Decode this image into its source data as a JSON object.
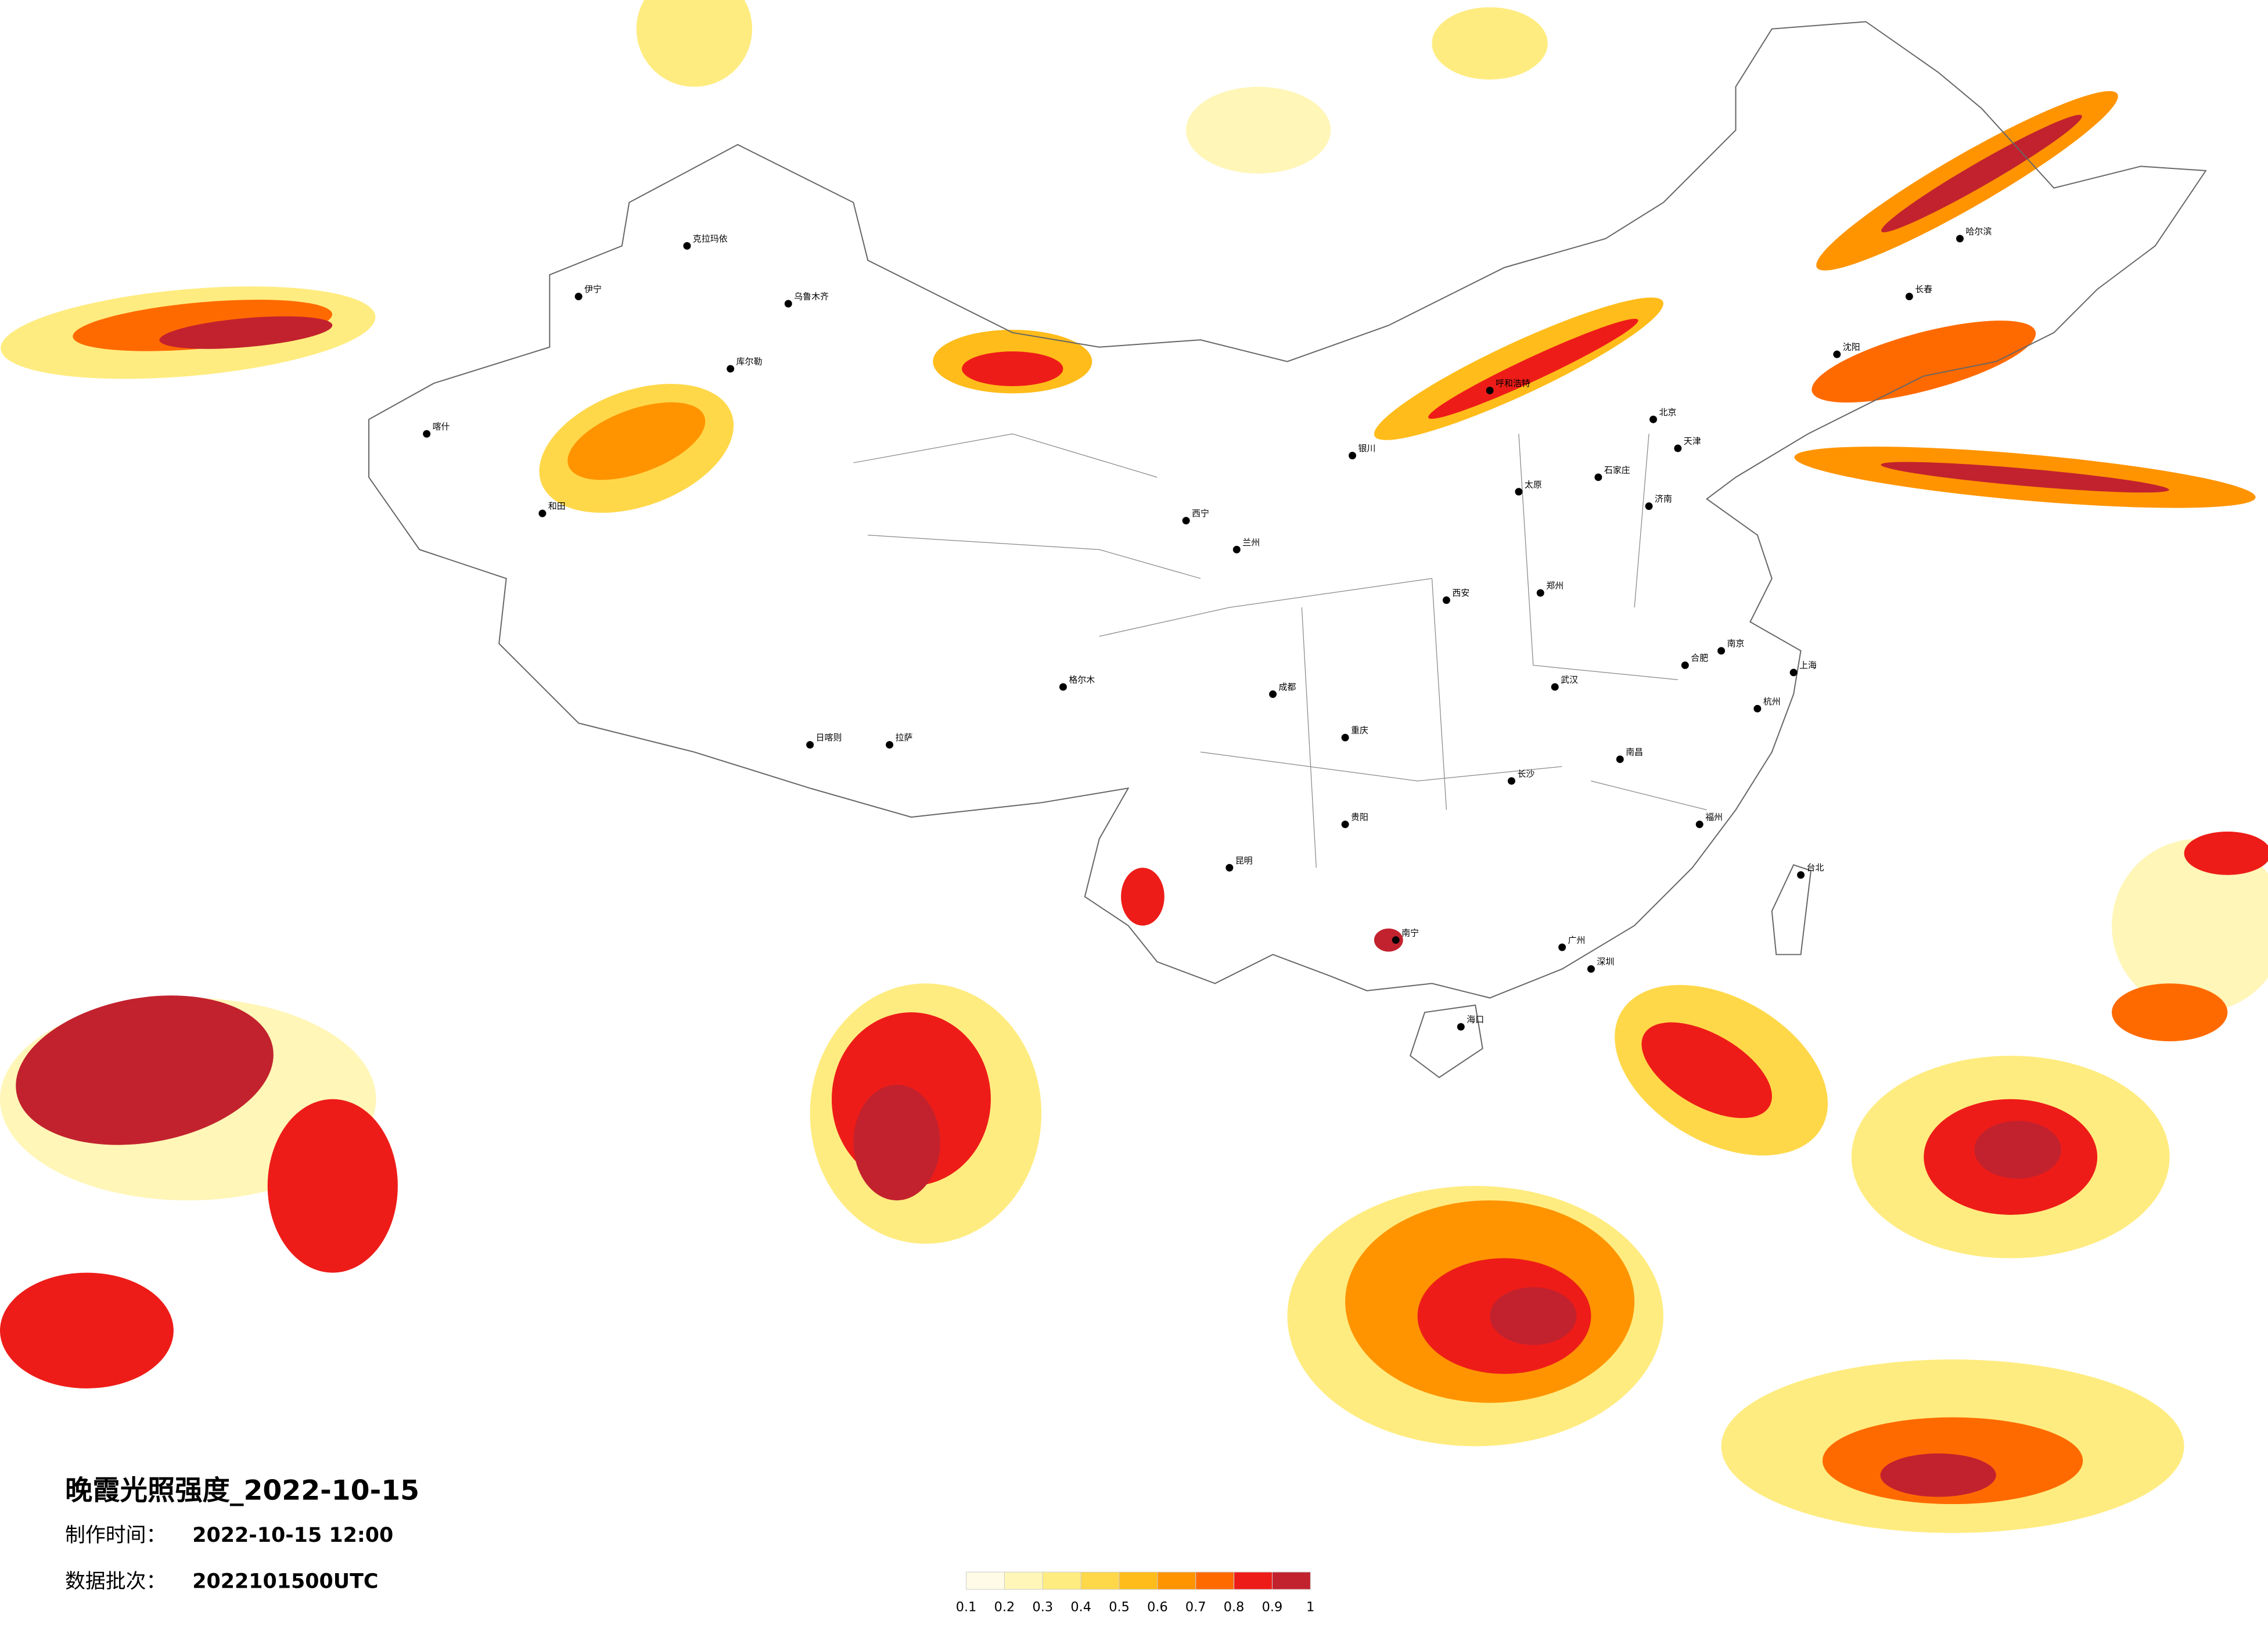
{
  "title": "晚霞光照强度_2022-10-15",
  "production_time": {
    "label": "制作时间：",
    "value": "2022-10-15 12:00"
  },
  "data_batch": {
    "label": "数据批次：",
    "value": "2022101500UTC"
  },
  "legend": {
    "colors": [
      "#fffbe6",
      "#fff6b8",
      "#ffec80",
      "#ffd84a",
      "#ffbc1a",
      "#ff9400",
      "#ff6a00",
      "#ee1c18",
      "#c2222e"
    ],
    "ticks": [
      0.1,
      0.2,
      0.3,
      0.4,
      0.5,
      0.6,
      0.7,
      0.8,
      0.9,
      1
    ]
  },
  "cities": [
    "北京",
    "天津",
    "上海",
    "广州",
    "深圳",
    "重庆",
    "成都",
    "西安",
    "武汉",
    "南京",
    "杭州",
    "长沙",
    "昆明",
    "南宁",
    "贵阳",
    "兰州",
    "西宁",
    "银川",
    "呼和浩特",
    "哈尔滨",
    "长春",
    "沈阳",
    "乌鲁木齐",
    "拉萨",
    "海口",
    "福州",
    "台北",
    "济南",
    "郑州",
    "合肥",
    "南昌",
    "石家庄",
    "太原",
    "喀什",
    "和田",
    "伊宁",
    "克拉玛依",
    "库尔勒",
    "格尔木",
    "日喀则"
  ]
}
